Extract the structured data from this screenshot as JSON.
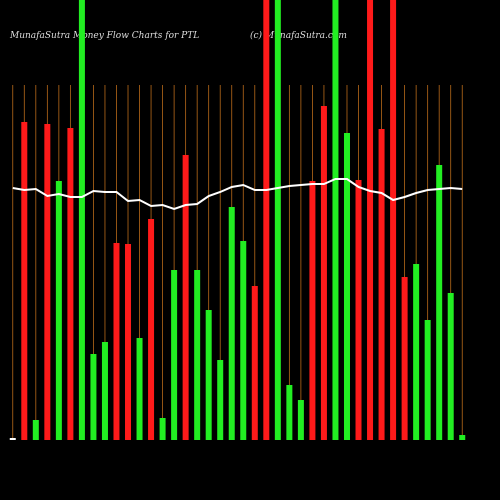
{
  "chart_data": {
    "type": "bar",
    "title": "MunafaSutra  Money Flow  Charts for PTL",
    "subtitle": "(c) MunafaSutra.com",
    "categories": [
      null,
      null,
      null,
      null,
      null,
      null,
      null,
      null,
      null,
      null,
      null,
      null,
      null,
      null,
      null,
      null,
      null,
      null,
      null,
      null,
      null,
      null,
      null,
      null,
      null,
      null,
      null,
      null,
      null,
      null,
      null,
      null,
      null,
      null,
      null,
      null,
      null,
      null,
      null,
      null
    ],
    "values": [
      2,
      318,
      20,
      316,
      259,
      312,
      440,
      86,
      98,
      197,
      196,
      102,
      221,
      22,
      170,
      285,
      170,
      130,
      80,
      233,
      199,
      154,
      440,
      440,
      55,
      40,
      259,
      334,
      440,
      307,
      260,
      440,
      311,
      440,
      163,
      176,
      120,
      275,
      147,
      5
    ],
    "bar_colors": [
      "#ffffff",
      "#ff1a1a",
      "#22ee22",
      "#ff1a1a",
      "#22ee22",
      "#ff1a1a",
      "#22ee22",
      "#22ee22",
      "#22ee22",
      "#ff1a1a",
      "#ff1a1a",
      "#22ee22",
      "#ff1a1a",
      "#22ee22",
      "#22ee22",
      "#ff1a1a",
      "#22ee22",
      "#22ee22",
      "#22ee22",
      "#22ee22",
      "#22ee22",
      "#ff1a1a",
      "#ff1a1a",
      "#22ee22",
      "#22ee22",
      "#22ee22",
      "#ff1a1a",
      "#ff1a1a",
      "#22ee22",
      "#22ee22",
      "#ff1a1a",
      "#ff1a1a",
      "#ff1a1a",
      "#ff1a1a",
      "#ff1a1a",
      "#22ee22",
      "#22ee22",
      "#22ee22",
      "#22ee22",
      "#22ee22"
    ],
    "line": {
      "color": "#ffffff",
      "values": [
        252,
        250,
        251,
        244,
        246,
        243,
        243,
        249,
        248,
        248,
        239,
        240,
        234,
        235,
        231,
        235,
        236,
        244,
        248,
        253,
        255,
        250,
        250,
        252,
        254,
        255,
        256,
        256,
        261,
        261,
        253,
        249,
        247,
        240,
        243,
        247,
        250,
        251,
        252,
        251
      ]
    },
    "ylim": [
      0,
      440
    ],
    "grid": true,
    "grid_color": "#b86a1a"
  }
}
